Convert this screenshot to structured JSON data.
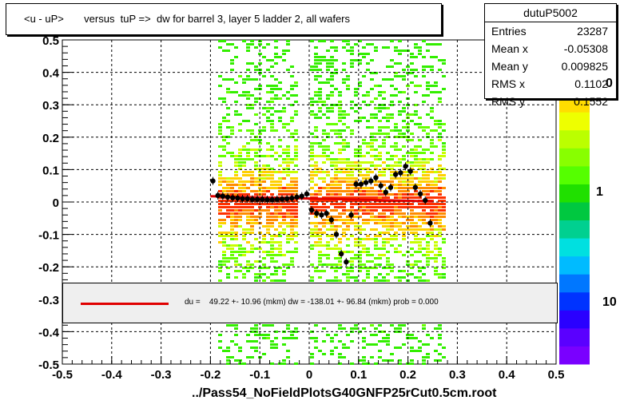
{
  "chart_data": {
    "type": "scatter",
    "title": "<u - uP>       versus  tuP =>  dw for barrel 3, layer 5 ladder 2, all wafers",
    "xlabel": "../Pass54_NoFieldPlotsG40GNFP25rCut0.5cm.root",
    "ylabel": "",
    "xlim": [
      -0.5,
      0.5
    ],
    "ylim": [
      -0.5,
      0.5
    ],
    "x_ticks": [
      "-0.5",
      "-0.4",
      "-0.3",
      "-0.2",
      "-0.1",
      "0",
      "0.1",
      "0.2",
      "0.3",
      "0.4",
      "0.5"
    ],
    "y_ticks": [
      "-0.5",
      "-0.4",
      "-0.3",
      "-0.2",
      "-0.1",
      "0",
      "0.1",
      "0.2",
      "0.3",
      "0.4",
      "0.5"
    ],
    "x_tick_values": [
      -0.5,
      -0.4,
      -0.3,
      -0.2,
      -0.1,
      0,
      0.1,
      0.2,
      0.3,
      0.4,
      0.5
    ],
    "y_tick_values": [
      -0.5,
      -0.4,
      -0.3,
      -0.2,
      -0.1,
      0,
      0.1,
      0.2,
      0.3,
      0.4,
      0.5
    ],
    "grid": true,
    "z_labels": [
      "0",
      "1",
      "10"
    ],
    "stats": {
      "name": "dutuP5002",
      "rows": [
        {
          "key": "Entries",
          "value": "23287"
        },
        {
          "key": "Mean x",
          "value": "-0.05308"
        },
        {
          "key": "Mean y",
          "value": "0.009825"
        },
        {
          "key": "RMS x",
          "value": "0.1102"
        },
        {
          "key": "RMS y",
          "value": "0.1552"
        }
      ]
    },
    "fit_legend": "du =    49.22 +- 10.96 (mkm) dw = -138.01 +- 96.84 (mkm) prob = 0.000",
    "fit_line": {
      "x": [
        -0.2,
        0.25
      ],
      "y": [
        0.018,
        0.002
      ],
      "color": "#e00000"
    },
    "profile_points": {
      "x": [
        -0.195,
        -0.185,
        -0.175,
        -0.165,
        -0.155,
        -0.145,
        -0.135,
        -0.125,
        -0.115,
        -0.105,
        -0.095,
        -0.085,
        -0.075,
        -0.065,
        -0.055,
        -0.045,
        -0.035,
        -0.025,
        -0.015,
        -0.005,
        0.005,
        0.015,
        0.025,
        0.035,
        0.045,
        0.055,
        0.065,
        0.075,
        0.085,
        0.095,
        0.105,
        0.115,
        0.125,
        0.135,
        0.145,
        0.155,
        0.165,
        0.175,
        0.185,
        0.195,
        0.205,
        0.215,
        0.225,
        0.235,
        0.245
      ],
      "y": [
        0.065,
        0.02,
        0.018,
        0.015,
        0.013,
        0.012,
        0.01,
        0.01,
        0.008,
        0.008,
        0.008,
        0.007,
        0.007,
        0.008,
        0.009,
        0.01,
        0.012,
        0.015,
        0.018,
        0.025,
        -0.025,
        -0.035,
        -0.04,
        -0.035,
        -0.055,
        -0.1,
        -0.16,
        -0.185,
        -0.04,
        0.055,
        0.055,
        0.06,
        0.065,
        0.075,
        0.05,
        0.03,
        0.045,
        0.085,
        0.09,
        0.11,
        0.095,
        0.045,
        0.025,
        0.005,
        -0.065
      ]
    },
    "colors": {
      "frame": "#000000",
      "fit": "#e00000",
      "fit_box": "#efefef"
    }
  }
}
